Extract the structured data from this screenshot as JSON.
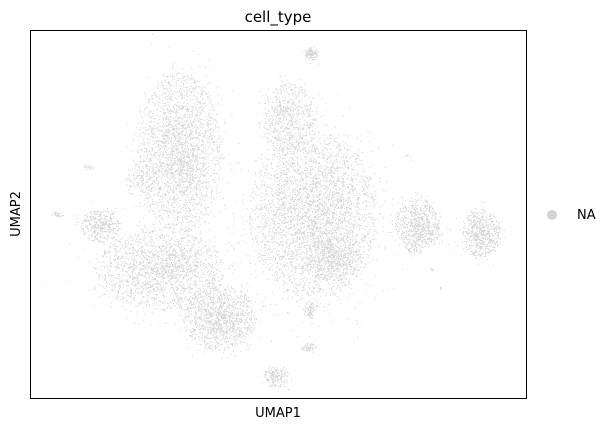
{
  "chart_data": {
    "type": "scatter",
    "title": "cell_type",
    "xlabel": "UMAP1",
    "ylabel": "UMAP2",
    "xlim": [
      0,
      1
    ],
    "ylim": [
      0,
      1
    ],
    "ticks": "none",
    "grid": false,
    "legend": {
      "placement": "right",
      "entries": [
        {
          "label": "NA",
          "color": "#d3d3d3"
        }
      ]
    },
    "point_color": "#d3d3d3",
    "clusters": [
      {
        "cx": 0.3,
        "cy": 0.67,
        "rx": 0.085,
        "ry": 0.22,
        "n": 2600
      },
      {
        "cx": 0.22,
        "cy": 0.6,
        "rx": 0.03,
        "ry": 0.05,
        "n": 120
      },
      {
        "cx": 0.52,
        "cy": 0.76,
        "rx": 0.055,
        "ry": 0.1,
        "n": 700
      },
      {
        "cx": 0.57,
        "cy": 0.5,
        "rx": 0.13,
        "ry": 0.23,
        "n": 3800
      },
      {
        "cx": 0.61,
        "cy": 0.38,
        "rx": 0.06,
        "ry": 0.06,
        "n": 500
      },
      {
        "cx": 0.14,
        "cy": 0.47,
        "rx": 0.04,
        "ry": 0.045,
        "n": 400
      },
      {
        "cx": 0.052,
        "cy": 0.5,
        "rx": 0.012,
        "ry": 0.008,
        "n": 30
      },
      {
        "cx": 0.115,
        "cy": 0.63,
        "rx": 0.012,
        "ry": 0.008,
        "n": 20
      },
      {
        "cx": 0.26,
        "cy": 0.35,
        "rx": 0.13,
        "ry": 0.11,
        "n": 1900
      },
      {
        "cx": 0.38,
        "cy": 0.22,
        "rx": 0.075,
        "ry": 0.09,
        "n": 1300
      },
      {
        "cx": 0.566,
        "cy": 0.94,
        "rx": 0.013,
        "ry": 0.018,
        "n": 120
      },
      {
        "cx": 0.565,
        "cy": 0.24,
        "rx": 0.016,
        "ry": 0.025,
        "n": 90
      },
      {
        "cx": 0.56,
        "cy": 0.14,
        "rx": 0.016,
        "ry": 0.012,
        "n": 60
      },
      {
        "cx": 0.495,
        "cy": 0.06,
        "rx": 0.026,
        "ry": 0.03,
        "n": 200
      },
      {
        "cx": 0.78,
        "cy": 0.47,
        "rx": 0.045,
        "ry": 0.075,
        "n": 800
      },
      {
        "cx": 0.91,
        "cy": 0.45,
        "rx": 0.04,
        "ry": 0.065,
        "n": 650
      },
      {
        "cx": 0.76,
        "cy": 0.66,
        "rx": 0.005,
        "ry": 0.005,
        "n": 6
      },
      {
        "cx": 0.81,
        "cy": 0.35,
        "rx": 0.005,
        "ry": 0.005,
        "n": 8
      },
      {
        "cx": 0.825,
        "cy": 0.3,
        "rx": 0.004,
        "ry": 0.006,
        "n": 6
      }
    ]
  }
}
